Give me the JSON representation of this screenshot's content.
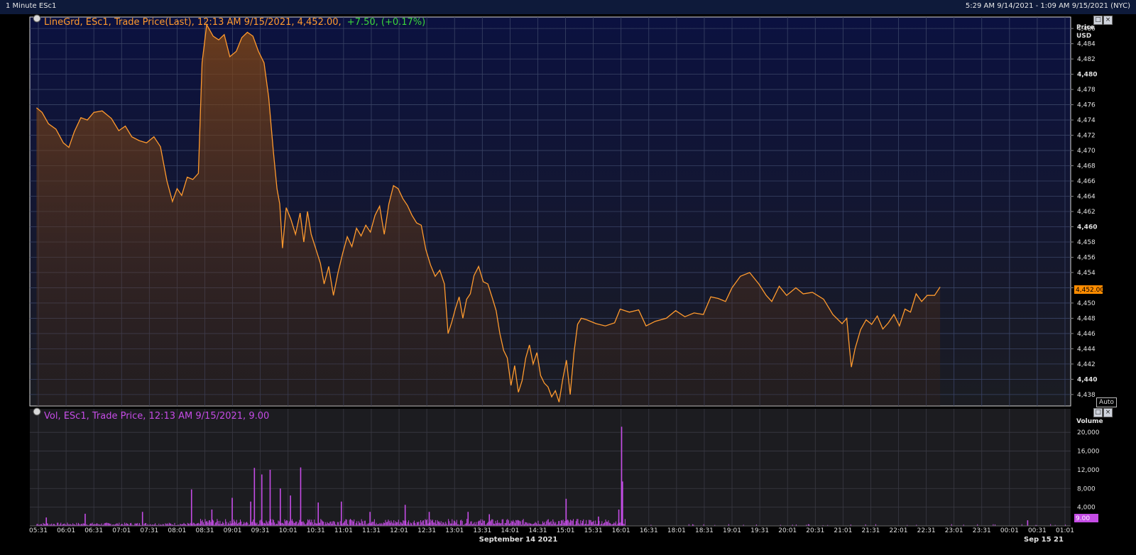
{
  "window": {
    "title": "1 Minute ESc1",
    "range_text": "5:29 AM 9/14/2021 - 1:09 AM 9/15/2021 (NYC)"
  },
  "colors": {
    "background": "#000000",
    "plot_bg_top": "#0b1140",
    "plot_bg_bottom": "#1b1c22",
    "grid": "#3a4466",
    "price_line": "#ff9a2e",
    "change_green": "#3ad63a",
    "volume_bar": "#c54ce6",
    "last_price_tag": "#ff8c00",
    "volume_tag": "#c54ce6"
  },
  "price_panel": {
    "legend_prefix": "LineGrd, ESc1, Trade Price(Last), 12:13 AM 9/15/2021, 4,452.00,",
    "legend_change": "+7.50, (+0.17%)",
    "axis_title": "Price",
    "axis_unit": "USD",
    "last_price_label": "4,452.00",
    "auto_label": "Auto",
    "pin_icon": "pin-icon"
  },
  "volume_panel": {
    "legend": "Vol, ESc1, Trade Price, 12:13 AM 9/15/2021, 9.00",
    "axis_title": "Volume",
    "last_volume_label": "9.00",
    "pin_icon": "pin-icon"
  },
  "x_axis": {
    "date_label_main": "September 14 2021",
    "date_label_next": "Sep 15 21"
  },
  "chart_data": [
    {
      "type": "area",
      "series": [
        {
          "name": "ESc1 Trade Price(Last)"
        }
      ],
      "ylim": [
        4436.5,
        4487.5
      ],
      "y_ticks": [
        4438,
        4440,
        4442,
        4444,
        4446,
        4448,
        4450,
        4452,
        4454,
        4456,
        4458,
        4460,
        4462,
        4464,
        4466,
        4468,
        4470,
        4472,
        4474,
        4476,
        4478,
        4480,
        4482,
        4484,
        4486
      ],
      "y_tick_labels": [
        "4,438",
        "4,440",
        "4,442",
        "4,444",
        "4,446",
        "4,448",
        "4,450",
        "4,452",
        "4,454",
        "4,456",
        "4,458",
        "4,460",
        "4,462",
        "4,464",
        "4,466",
        "4,468",
        "4,470",
        "4,472",
        "4,474",
        "4,476",
        "4,478",
        "4,480",
        "4,482",
        "4,484",
        "4,486"
      ],
      "x_tick_labels": [
        "05:31",
        "06:01",
        "06:31",
        "07:01",
        "07:31",
        "08:01",
        "08:31",
        "09:01",
        "09:31",
        "10:01",
        "10:31",
        "11:01",
        "11:31",
        "12:01",
        "12:31",
        "13:01",
        "13:31",
        "14:01",
        "14:31",
        "15:01",
        "15:31",
        "16:01",
        "16:31",
        "18:01",
        "18:31",
        "19:01",
        "19:31",
        "20:01",
        "20:31",
        "21:01",
        "21:31",
        "22:01",
        "22:31",
        "23:01",
        "23:31",
        "00:01",
        "00:31",
        "01:01"
      ],
      "points": [
        [
          "05:29",
          4475.6
        ],
        [
          "05:35",
          4475.0
        ],
        [
          "05:42",
          4473.5
        ],
        [
          "05:50",
          4472.8
        ],
        [
          "05:58",
          4471.0
        ],
        [
          "06:04",
          4470.4
        ],
        [
          "06:10",
          4472.5
        ],
        [
          "06:17",
          4474.3
        ],
        [
          "06:24",
          4474.0
        ],
        [
          "06:31",
          4475.0
        ],
        [
          "06:40",
          4475.2
        ],
        [
          "06:50",
          4474.2
        ],
        [
          "06:58",
          4472.6
        ],
        [
          "07:05",
          4473.2
        ],
        [
          "07:12",
          4471.8
        ],
        [
          "07:20",
          4471.3
        ],
        [
          "07:28",
          4471.0
        ],
        [
          "07:36",
          4471.8
        ],
        [
          "07:43",
          4470.5
        ],
        [
          "07:50",
          4466.0
        ],
        [
          "07:56",
          4463.3
        ],
        [
          "08:01",
          4465.0
        ],
        [
          "08:06",
          4464.1
        ],
        [
          "08:12",
          4466.5
        ],
        [
          "08:18",
          4466.2
        ],
        [
          "08:24",
          4467.0
        ],
        [
          "08:28",
          4481.5
        ],
        [
          "08:33",
          4486.5
        ],
        [
          "08:40",
          4485.0
        ],
        [
          "08:46",
          4484.5
        ],
        [
          "08:52",
          4485.2
        ],
        [
          "08:58",
          4482.3
        ],
        [
          "09:05",
          4483.0
        ],
        [
          "09:11",
          4484.8
        ],
        [
          "09:17",
          4485.5
        ],
        [
          "09:23",
          4485.0
        ],
        [
          "09:29",
          4483.0
        ],
        [
          "09:35",
          4481.5
        ],
        [
          "09:40",
          4477.0
        ],
        [
          "09:45",
          4470.0
        ],
        [
          "09:49",
          4465.0
        ],
        [
          "09:52",
          4463.0
        ],
        [
          "09:55",
          4457.2
        ],
        [
          "09:59",
          4462.5
        ],
        [
          "10:04",
          4461.0
        ],
        [
          "10:09",
          4459.0
        ],
        [
          "10:14",
          4461.8
        ],
        [
          "10:18",
          4458.0
        ],
        [
          "10:22",
          4462.0
        ],
        [
          "10:26",
          4459.0
        ],
        [
          "10:30",
          4457.5
        ],
        [
          "10:36",
          4455.2
        ],
        [
          "10:40",
          4452.5
        ],
        [
          "10:45",
          4454.8
        ],
        [
          "10:50",
          4451.0
        ],
        [
          "10:55",
          4454.0
        ],
        [
          "11:00",
          4456.5
        ],
        [
          "11:05",
          4458.7
        ],
        [
          "11:10",
          4457.4
        ],
        [
          "11:15",
          4459.8
        ],
        [
          "11:20",
          4458.8
        ],
        [
          "11:25",
          4460.2
        ],
        [
          "11:30",
          4459.3
        ],
        [
          "11:35",
          4461.5
        ],
        [
          "11:40",
          4462.7
        ],
        [
          "11:45",
          4459.0
        ],
        [
          "11:50",
          4463.0
        ],
        [
          "11:55",
          4465.4
        ],
        [
          "12:00",
          4465.0
        ],
        [
          "12:05",
          4463.7
        ],
        [
          "12:10",
          4462.8
        ],
        [
          "12:15",
          4461.5
        ],
        [
          "12:20",
          4460.5
        ],
        [
          "12:25",
          4460.2
        ],
        [
          "12:30",
          4457.0
        ],
        [
          "12:35",
          4455.0
        ],
        [
          "12:40",
          4453.5
        ],
        [
          "12:45",
          4454.3
        ],
        [
          "12:50",
          4452.5
        ],
        [
          "12:54",
          4446.0
        ],
        [
          "12:58",
          4447.5
        ],
        [
          "13:02",
          4449.3
        ],
        [
          "13:06",
          4450.8
        ],
        [
          "13:10",
          4448.0
        ],
        [
          "13:14",
          4450.5
        ],
        [
          "13:18",
          4451.2
        ],
        [
          "13:22",
          4453.6
        ],
        [
          "13:27",
          4454.8
        ],
        [
          "13:32",
          4452.8
        ],
        [
          "13:37",
          4452.5
        ],
        [
          "13:42",
          4450.6
        ],
        [
          "13:46",
          4449.0
        ],
        [
          "13:50",
          4446.0
        ],
        [
          "13:54",
          4443.8
        ],
        [
          "13:58",
          4442.8
        ],
        [
          "14:02",
          4439.2
        ],
        [
          "14:06",
          4441.8
        ],
        [
          "14:10",
          4438.3
        ],
        [
          "14:14",
          4439.8
        ],
        [
          "14:18",
          4442.8
        ],
        [
          "14:22",
          4444.5
        ],
        [
          "14:26",
          4442.0
        ],
        [
          "14:30",
          4443.5
        ],
        [
          "14:34",
          4440.5
        ],
        [
          "14:38",
          4439.5
        ],
        [
          "14:42",
          4439.0
        ],
        [
          "14:46",
          4437.7
        ],
        [
          "14:50",
          4438.5
        ],
        [
          "14:54",
          4437.0
        ],
        [
          "14:58",
          4440.0
        ],
        [
          "15:02",
          4442.5
        ],
        [
          "15:06",
          4438.0
        ],
        [
          "15:10",
          4443.4
        ],
        [
          "15:14",
          4447.2
        ],
        [
          "15:18",
          4448.0
        ],
        [
          "15:24",
          4447.8
        ],
        [
          "15:34",
          4447.3
        ],
        [
          "15:44",
          4447.0
        ],
        [
          "15:54",
          4447.4
        ],
        [
          "16:00",
          4449.2
        ],
        [
          "16:10",
          4448.8
        ],
        [
          "16:20",
          4449.1
        ],
        [
          "16:28",
          4447.0
        ],
        [
          "16:38",
          4447.6
        ],
        [
          "16:50",
          4448.0
        ],
        [
          "17:00",
          4449.0
        ],
        [
          "17:10",
          4448.2
        ],
        [
          "17:20",
          4448.7
        ],
        [
          "17:30",
          4448.5
        ],
        [
          "17:38",
          4450.8
        ],
        [
          "17:46",
          4450.6
        ],
        [
          "17:54",
          4450.2
        ],
        [
          "18:01",
          4452.0
        ],
        [
          "18:10",
          4453.5
        ],
        [
          "18:20",
          4454.0
        ],
        [
          "18:30",
          4452.5
        ],
        [
          "18:38",
          4451.0
        ],
        [
          "18:44",
          4450.2
        ],
        [
          "18:52",
          4452.2
        ],
        [
          "19:00",
          4451.0
        ],
        [
          "19:10",
          4452.0
        ],
        [
          "19:18",
          4451.2
        ],
        [
          "19:28",
          4451.4
        ],
        [
          "19:40",
          4450.5
        ],
        [
          "19:50",
          4448.5
        ],
        [
          "20:00",
          4447.3
        ],
        [
          "20:05",
          4448.0
        ],
        [
          "20:08",
          4444.0
        ],
        [
          "20:10",
          4441.6
        ],
        [
          "20:14",
          4444.0
        ],
        [
          "20:20",
          4446.5
        ],
        [
          "20:26",
          4447.8
        ],
        [
          "20:32",
          4447.2
        ],
        [
          "20:38",
          4448.3
        ],
        [
          "20:44",
          4446.6
        ],
        [
          "20:50",
          4447.4
        ],
        [
          "20:56",
          4448.5
        ],
        [
          "21:02",
          4447.0
        ],
        [
          "21:08",
          4449.2
        ],
        [
          "21:14",
          4448.8
        ],
        [
          "21:20",
          4451.2
        ],
        [
          "21:26",
          4450.2
        ],
        [
          "21:32",
          4451.0
        ],
        [
          "21:40",
          4451.0
        ],
        [
          "21:46",
          4452.1
        ]
      ]
    },
    {
      "type": "bar",
      "series": [
        {
          "name": "ESc1 Volume"
        }
      ],
      "ylim": [
        0,
        22000
      ],
      "y_ticks": [
        4000,
        8000,
        12000,
        16000,
        20000
      ],
      "y_tick_labels": [
        "4,000",
        "8,000",
        "12,000",
        "16,000",
        "20,000"
      ],
      "notable_bars": [
        [
          "05:39",
          1800
        ],
        [
          "06:21",
          2600
        ],
        [
          "07:23",
          3000
        ],
        [
          "08:16",
          7800
        ],
        [
          "08:38",
          3500
        ],
        [
          "09:00",
          6000
        ],
        [
          "09:20",
          5200
        ],
        [
          "09:24",
          12400
        ],
        [
          "09:32",
          11000
        ],
        [
          "09:41",
          12000
        ],
        [
          "09:52",
          8000
        ],
        [
          "10:03",
          6500
        ],
        [
          "10:14",
          12500
        ],
        [
          "10:33",
          5000
        ],
        [
          "10:58",
          5200
        ],
        [
          "11:29",
          3000
        ],
        [
          "12:07",
          4500
        ],
        [
          "12:33",
          3000
        ],
        [
          "13:15",
          3000
        ],
        [
          "13:38",
          2500
        ],
        [
          "15:01",
          5800
        ],
        [
          "15:36",
          2000
        ],
        [
          "15:58",
          3500
        ],
        [
          "16:01",
          21200
        ],
        [
          "16:02",
          9500
        ],
        [
          "23:20",
          1200
        ]
      ]
    }
  ]
}
